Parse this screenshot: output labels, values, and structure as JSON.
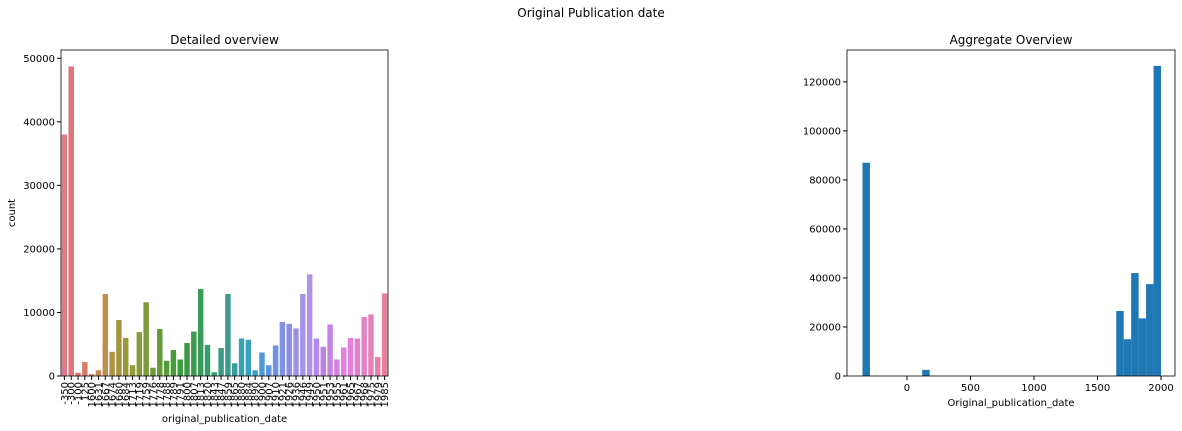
{
  "title": "Original Publication date",
  "chart_data": [
    {
      "type": "bar",
      "title": "Detailed overview",
      "xlabel": "original_publication_date",
      "ylabel": "count",
      "categories": [
        "-350",
        "-300",
        "-100",
        "125",
        "1600",
        "1631",
        "1667",
        "1674",
        "1680",
        "1684",
        "1713",
        "1719",
        "1759",
        "1776",
        "1778",
        "1788",
        "1789",
        "1791",
        "1800",
        "1807",
        "1813",
        "1820",
        "1843",
        "1847",
        "1859",
        "1865",
        "1880",
        "1884",
        "1890",
        "1900",
        "1907",
        "1910",
        "1921",
        "1926",
        "1936",
        "1946",
        "1949",
        "1950",
        "1951",
        "1953",
        "1955",
        "1961",
        "1965",
        "1967",
        "1968",
        "1975",
        "1979",
        "1985"
      ],
      "values": [
        38000,
        48700,
        500,
        2200,
        300,
        900,
        12900,
        3800,
        8800,
        6000,
        1700,
        6900,
        11600,
        1300,
        7400,
        2400,
        4100,
        2600,
        5200,
        7000,
        13700,
        4900,
        600,
        4400,
        12900,
        2000,
        5900,
        5700,
        900,
        3700,
        1700,
        4800,
        8500,
        8200,
        7500,
        12900,
        16000,
        5900,
        4600,
        8100,
        2600,
        4500,
        6000,
        5900,
        9300,
        9700,
        3000,
        13000
      ],
      "colors": [
        "hsl(350,60%,68%)",
        "hsl(358,60%,66%)",
        "hsl(5,60%,64%)",
        "hsl(13,60%,62%)",
        "hsl(20,55%,58%)",
        "hsl(28,50%,55%)",
        "hsl(35,48%,52%)",
        "hsl(43,45%,48%)",
        "hsl(50,45%,45%)",
        "hsl(58,45%,42%)",
        "hsl(65,45%,42%)",
        "hsl(73,45%,42%)",
        "hsl(80,45%,42%)",
        "hsl(88,45%,42%)",
        "hsl(95,45%,42%)",
        "hsl(103,45%,42%)",
        "hsl(110,45%,42%)",
        "hsl(118,45%,42%)",
        "hsl(125,45%,42%)",
        "hsl(133,45%,42%)",
        "hsl(140,45%,42%)",
        "hsl(148,45%,42%)",
        "hsl(155,45%,42%)",
        "hsl(163,45%,42%)",
        "hsl(170,45%,42%)",
        "hsl(178,45%,42%)",
        "hsl(185,50%,45%)",
        "hsl(193,55%,48%)",
        "hsl(200,60%,52%)",
        "hsl(208,65%,58%)",
        "hsl(215,65%,62%)",
        "hsl(223,65%,66%)",
        "hsl(230,65%,70%)",
        "hsl(238,65%,72%)",
        "hsl(245,65%,74%)",
        "hsl(253,65%,74%)",
        "hsl(260,65%,74%)",
        "hsl(268,65%,72%)",
        "hsl(275,65%,70%)",
        "hsl(283,65%,70%)",
        "hsl(290,65%,70%)",
        "hsl(298,65%,70%)",
        "hsl(305,65%,70%)",
        "hsl(313,65%,70%)",
        "hsl(320,65%,70%)",
        "hsl(328,65%,70%)",
        "hsl(335,65%,70%)",
        "hsl(343,65%,70%)"
      ],
      "ylim": [
        0,
        51300
      ],
      "yticks": [
        0,
        10000,
        20000,
        30000,
        40000,
        50000
      ]
    },
    {
      "type": "histogram",
      "title": "Aggregate Overview",
      "xlabel": "Original_publication_date",
      "bins": [
        -350,
        -291.25,
        -232.5,
        -173.75,
        -115,
        -56.25,
        2.5,
        61.25,
        120,
        178.75,
        237.5,
        296.25,
        355,
        413.75,
        472.5,
        531.25,
        590,
        648.75,
        707.5,
        766.25,
        825,
        883.75,
        942.5,
        1001.25,
        1060,
        1118.75,
        1177.5,
        1236.25,
        1295,
        1353.75,
        1412.5,
        1471.25,
        1530,
        1588.75,
        1647.5,
        1706.25,
        1765,
        1823.75,
        1882.5,
        1941.25,
        2000
      ],
      "values": [
        87000,
        0,
        0,
        0,
        0,
        0,
        0,
        0,
        2500,
        0,
        0,
        0,
        0,
        0,
        0,
        0,
        0,
        0,
        0,
        0,
        0,
        0,
        0,
        0,
        0,
        0,
        0,
        0,
        0,
        0,
        0,
        0,
        0,
        0,
        26500,
        15000,
        42000,
        23500,
        37500,
        126500
      ],
      "color": "#1f77b4",
      "xlim": [
        -472,
        2110
      ],
      "xticks": [
        0,
        500,
        1000,
        1500,
        2000
      ],
      "ylim": [
        0,
        133000
      ],
      "yticks": [
        0,
        20000,
        40000,
        60000,
        80000,
        100000,
        120000
      ]
    }
  ]
}
